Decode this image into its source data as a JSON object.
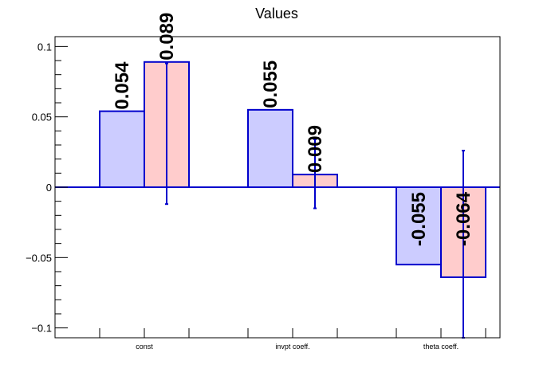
{
  "chart_data": {
    "type": "bar",
    "title": "Values",
    "categories": [
      "const",
      "invpt coeff.",
      "theta coeff."
    ],
    "series": [
      {
        "values": [
          0.054,
          0.055,
          -0.055
        ],
        "labels": [
          "0.054",
          "0.055",
          "-0.055"
        ],
        "fill": "#ccccff",
        "errors": null
      },
      {
        "values": [
          0.089,
          0.009,
          -0.064
        ],
        "labels": [
          "0.089",
          "0.009",
          "-0.064"
        ],
        "fill": "#ffcccc",
        "errors": [
          [
            -0.012,
            0.088
          ],
          [
            -0.015,
            0.034
          ],
          [
            -0.107,
            0.026
          ]
        ]
      }
    ],
    "yticks": [
      -0.1,
      -0.05,
      0,
      0.05,
      0.1
    ],
    "ytick_labels": [
      "−0.1",
      "−0.05",
      "0",
      "0.05",
      "0.1"
    ],
    "ylim": [
      -0.107,
      0.107
    ],
    "xlabel": "",
    "ylabel": "",
    "grid": false,
    "colors": {
      "edge": "#0000cc",
      "axis": "#000000"
    }
  }
}
